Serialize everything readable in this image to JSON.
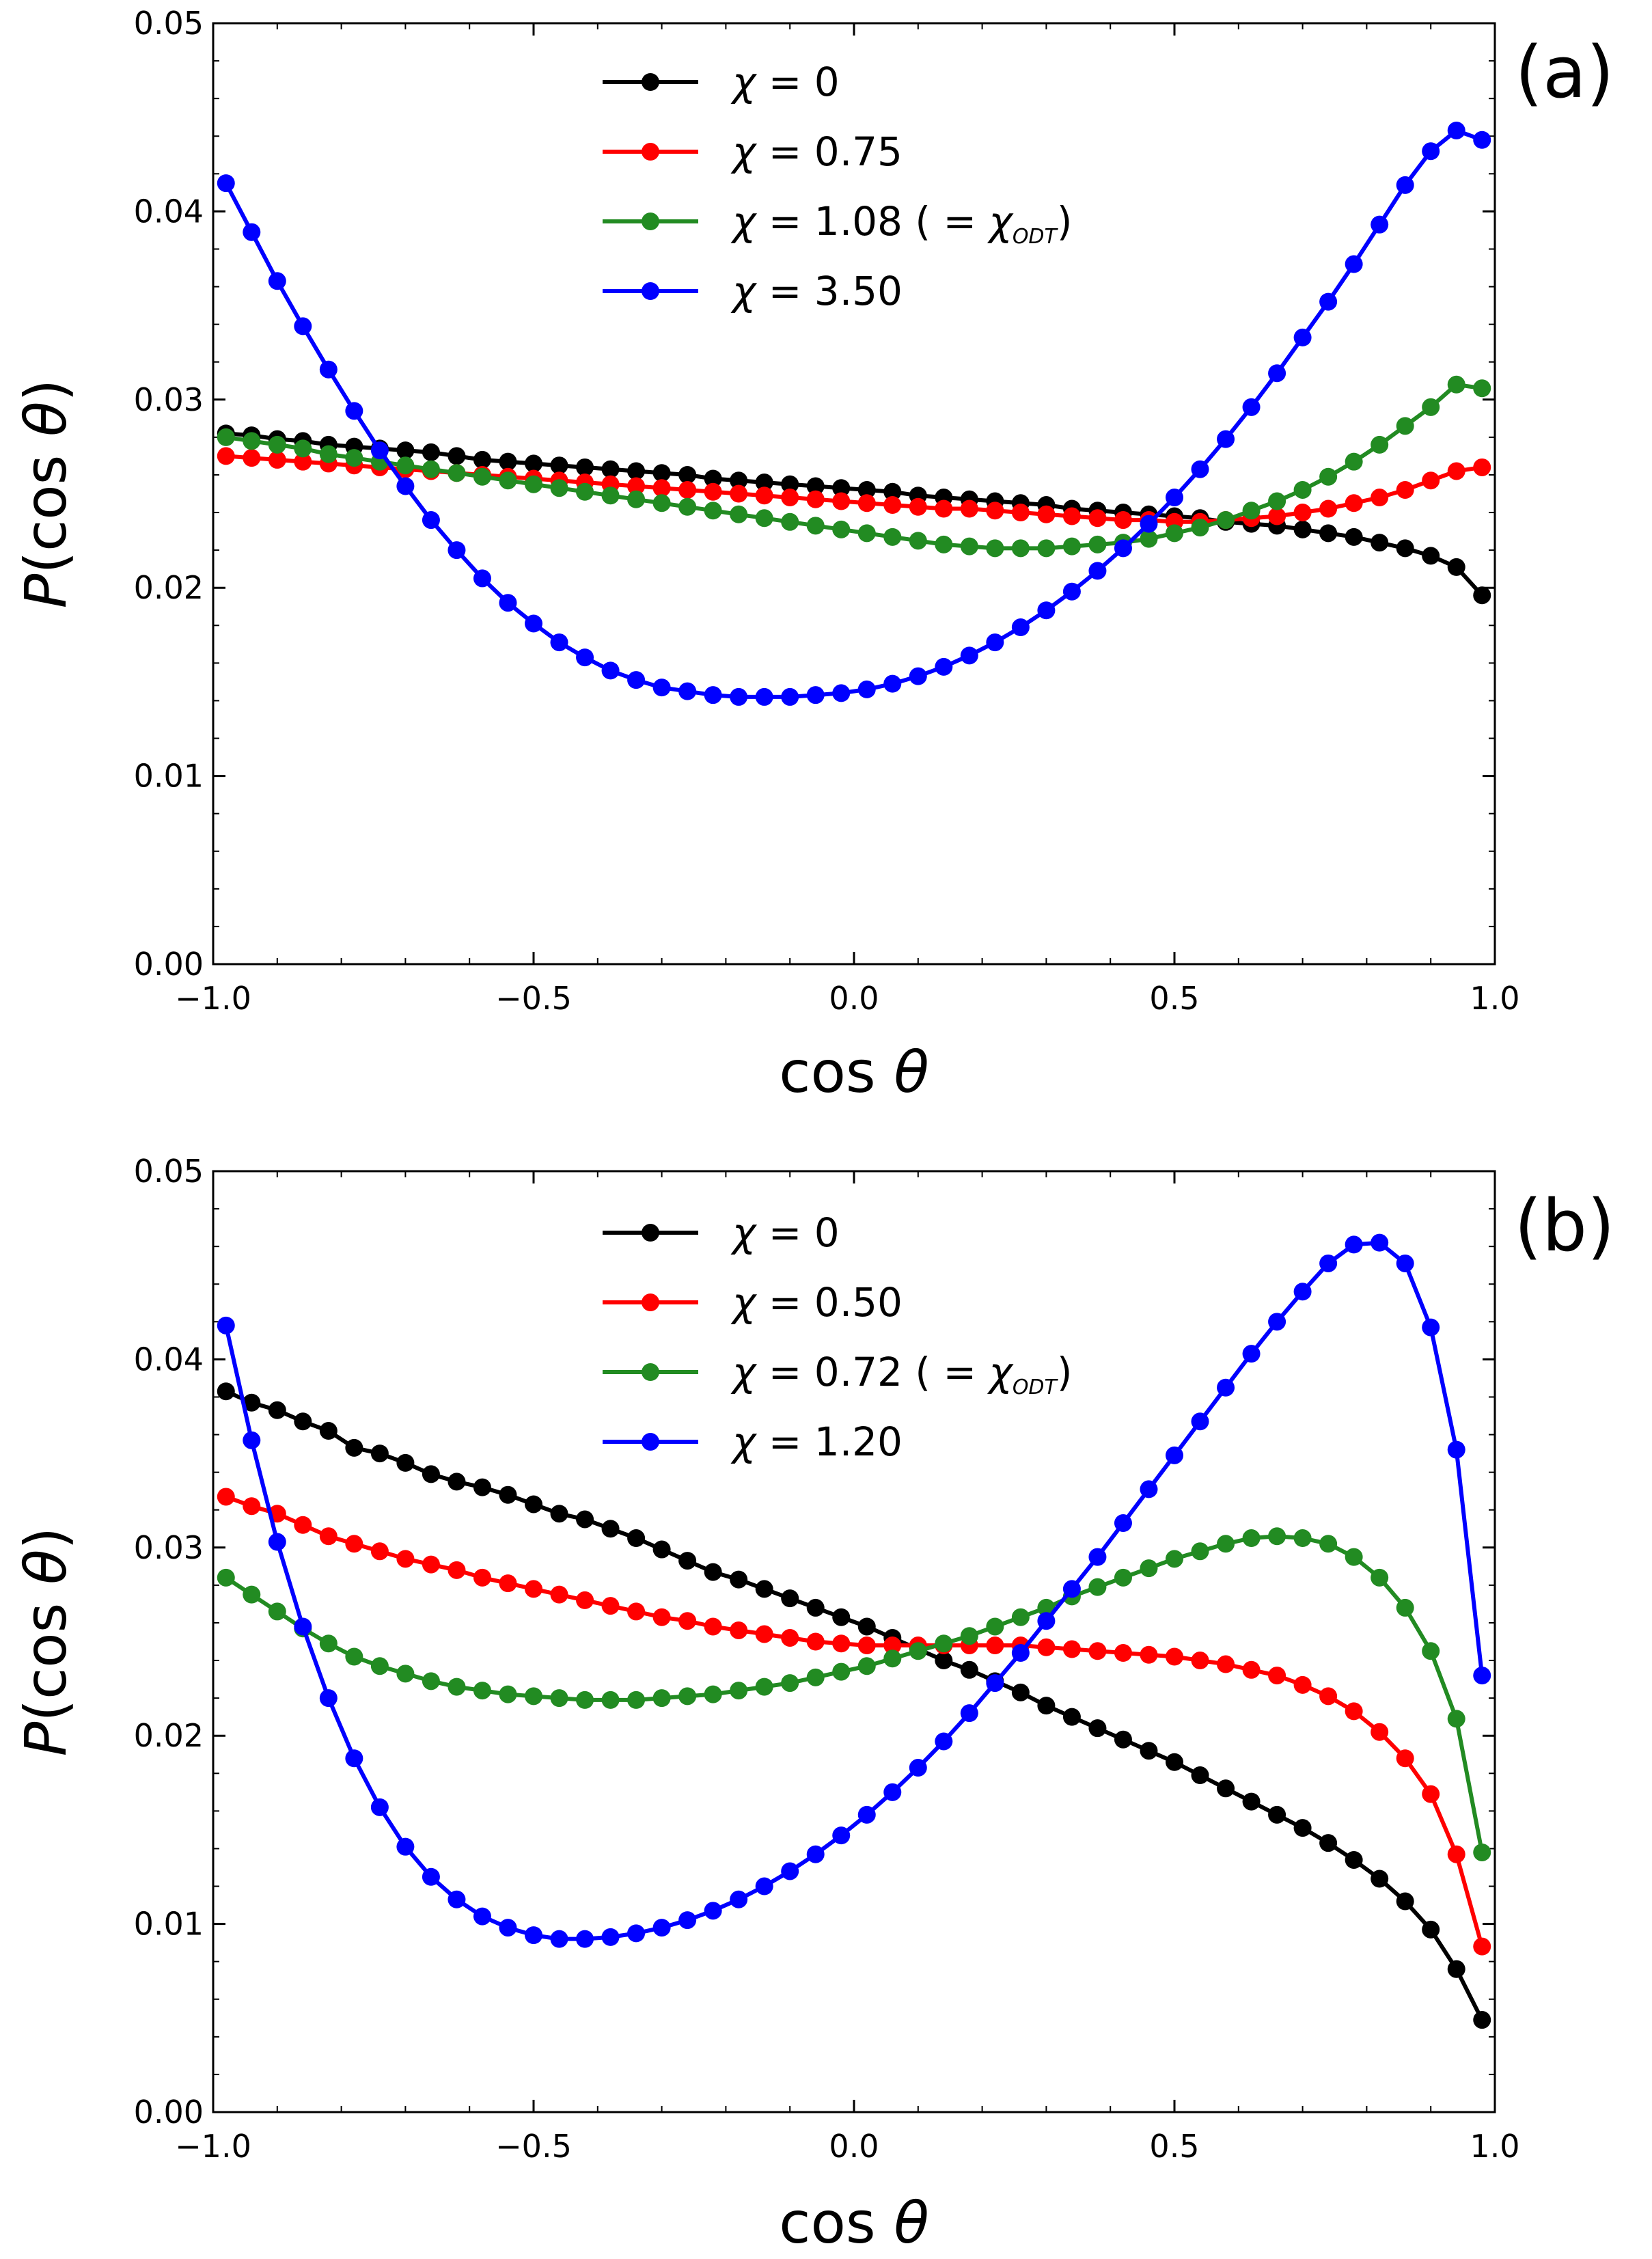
{
  "chart_data": [
    {
      "type": "line",
      "panel_label": "(a)",
      "xlabel": "cos θ",
      "ylabel": "P(cos θ)",
      "xlim": [
        -1.0,
        1.0
      ],
      "ylim": [
        0.0,
        0.05
      ],
      "xticks": [
        -1.0,
        -0.5,
        0.0,
        0.5,
        1.0
      ],
      "xtick_labels": [
        "−1.0",
        "−0.5",
        "0.0",
        "0.5",
        "1.0"
      ],
      "yticks": [
        0.0,
        0.01,
        0.02,
        0.03,
        0.04,
        0.05
      ],
      "ytick_labels": [
        "0.00",
        "0.01",
        "0.02",
        "0.03",
        "0.04",
        "0.05"
      ],
      "legend_position": "top-center",
      "x": [
        -0.98,
        -0.94,
        -0.9,
        -0.86,
        -0.82,
        -0.78,
        -0.74,
        -0.7,
        -0.66,
        -0.62,
        -0.58,
        -0.54,
        -0.5,
        -0.46,
        -0.42,
        -0.38,
        -0.34,
        -0.3,
        -0.26,
        -0.22,
        -0.18,
        -0.14,
        -0.1,
        -0.06,
        -0.02,
        0.02,
        0.06,
        0.1,
        0.14,
        0.18,
        0.22,
        0.26,
        0.3,
        0.34,
        0.38,
        0.42,
        0.46,
        0.5,
        0.54,
        0.58,
        0.62,
        0.66,
        0.7,
        0.74,
        0.78,
        0.82,
        0.86,
        0.9,
        0.94,
        0.98
      ],
      "series": [
        {
          "name": "χ = 0",
          "label": "χ = 0",
          "color": "#000000",
          "values": [
            0.0282,
            0.0281,
            0.0279,
            0.0278,
            0.0276,
            0.0275,
            0.0274,
            0.0273,
            0.0272,
            0.027,
            0.0268,
            0.0267,
            0.0266,
            0.0265,
            0.0264,
            0.0263,
            0.0262,
            0.0261,
            0.026,
            0.0258,
            0.0257,
            0.0256,
            0.0255,
            0.0254,
            0.0253,
            0.0252,
            0.0251,
            0.0249,
            0.0248,
            0.0247,
            0.0246,
            0.0245,
            0.0244,
            0.0242,
            0.0241,
            0.024,
            0.0239,
            0.0238,
            0.0237,
            0.0235,
            0.0234,
            0.0233,
            0.0231,
            0.0229,
            0.0227,
            0.0224,
            0.0221,
            0.0217,
            0.0211,
            0.0196
          ]
        },
        {
          "name": "χ = 0.75",
          "label": "χ = 0.75",
          "color": "#ff0000",
          "values": [
            0.027,
            0.0269,
            0.0268,
            0.0267,
            0.0266,
            0.0265,
            0.0264,
            0.0263,
            0.0262,
            0.0261,
            0.026,
            0.0259,
            0.0258,
            0.0257,
            0.0256,
            0.0255,
            0.0254,
            0.0253,
            0.0252,
            0.0251,
            0.025,
            0.0249,
            0.0248,
            0.0247,
            0.0246,
            0.0245,
            0.0244,
            0.0243,
            0.0242,
            0.0242,
            0.0241,
            0.024,
            0.0239,
            0.0238,
            0.0237,
            0.0236,
            0.0236,
            0.0235,
            0.0235,
            0.0236,
            0.0237,
            0.0238,
            0.024,
            0.0242,
            0.0245,
            0.0248,
            0.0252,
            0.0257,
            0.0262,
            0.0264
          ]
        },
        {
          "name": "χ = 1.08 ( = χODT)",
          "label": "χ = 1.08 ( = χ",
          "sub": "ODT",
          "color": "#228b22",
          "values": [
            0.028,
            0.0278,
            0.0276,
            0.0274,
            0.0271,
            0.0269,
            0.0267,
            0.0265,
            0.0263,
            0.0261,
            0.0259,
            0.0257,
            0.0255,
            0.0253,
            0.0251,
            0.0249,
            0.0247,
            0.0245,
            0.0243,
            0.0241,
            0.0239,
            0.0237,
            0.0235,
            0.0233,
            0.0231,
            0.0229,
            0.0227,
            0.0225,
            0.0223,
            0.0222,
            0.0221,
            0.0221,
            0.0221,
            0.0222,
            0.0223,
            0.0224,
            0.0226,
            0.0229,
            0.0232,
            0.0236,
            0.0241,
            0.0246,
            0.0252,
            0.0259,
            0.0267,
            0.0276,
            0.0286,
            0.0296,
            0.0308,
            0.0306
          ]
        },
        {
          "name": "χ = 3.50",
          "label": "χ = 3.50",
          "color": "#0000ff",
          "values": [
            0.0415,
            0.0389,
            0.0363,
            0.0339,
            0.0316,
            0.0294,
            0.0273,
            0.0254,
            0.0236,
            0.022,
            0.0205,
            0.0192,
            0.0181,
            0.0171,
            0.0163,
            0.0156,
            0.0151,
            0.0147,
            0.0145,
            0.0143,
            0.0142,
            0.0142,
            0.0142,
            0.0143,
            0.0144,
            0.0146,
            0.0149,
            0.0153,
            0.0158,
            0.0164,
            0.0171,
            0.0179,
            0.0188,
            0.0198,
            0.0209,
            0.0221,
            0.0234,
            0.0248,
            0.0263,
            0.0279,
            0.0296,
            0.0314,
            0.0333,
            0.0352,
            0.0372,
            0.0393,
            0.0414,
            0.0432,
            0.0443,
            0.0438
          ]
        }
      ]
    },
    {
      "type": "line",
      "panel_label": "(b)",
      "xlabel": "cos θ",
      "ylabel": "P(cos θ)",
      "xlim": [
        -1.0,
        1.0
      ],
      "ylim": [
        0.0,
        0.05
      ],
      "xticks": [
        -1.0,
        -0.5,
        0.0,
        0.5,
        1.0
      ],
      "xtick_labels": [
        "−1.0",
        "−0.5",
        "0.0",
        "0.5",
        "1.0"
      ],
      "yticks": [
        0.0,
        0.01,
        0.02,
        0.03,
        0.04,
        0.05
      ],
      "ytick_labels": [
        "0.00",
        "0.01",
        "0.02",
        "0.03",
        "0.04",
        "0.05"
      ],
      "legend_position": "top-center",
      "x": [
        -0.98,
        -0.94,
        -0.9,
        -0.86,
        -0.82,
        -0.78,
        -0.74,
        -0.7,
        -0.66,
        -0.62,
        -0.58,
        -0.54,
        -0.5,
        -0.46,
        -0.42,
        -0.38,
        -0.34,
        -0.3,
        -0.26,
        -0.22,
        -0.18,
        -0.14,
        -0.1,
        -0.06,
        -0.02,
        0.02,
        0.06,
        0.1,
        0.14,
        0.18,
        0.22,
        0.26,
        0.3,
        0.34,
        0.38,
        0.42,
        0.46,
        0.5,
        0.54,
        0.58,
        0.62,
        0.66,
        0.7,
        0.74,
        0.78,
        0.82,
        0.86,
        0.9,
        0.94,
        0.98
      ],
      "series": [
        {
          "name": "χ = 0",
          "label": "χ = 0",
          "color": "#000000",
          "values": [
            0.0383,
            0.0377,
            0.0373,
            0.0367,
            0.0362,
            0.0353,
            0.035,
            0.0345,
            0.0339,
            0.0335,
            0.0332,
            0.0328,
            0.0323,
            0.0318,
            0.0315,
            0.031,
            0.0305,
            0.0299,
            0.0293,
            0.0287,
            0.0283,
            0.0278,
            0.0273,
            0.0268,
            0.0263,
            0.0258,
            0.0252,
            0.0246,
            0.024,
            0.0235,
            0.0229,
            0.0223,
            0.0216,
            0.021,
            0.0204,
            0.0198,
            0.0192,
            0.0186,
            0.0179,
            0.0172,
            0.0165,
            0.0158,
            0.0151,
            0.0143,
            0.0134,
            0.0124,
            0.0112,
            0.0097,
            0.0076,
            0.0049
          ]
        },
        {
          "name": "χ = 0.50",
          "label": "χ = 0.50",
          "color": "#ff0000",
          "values": [
            0.0327,
            0.0322,
            0.0318,
            0.0312,
            0.0306,
            0.0302,
            0.0298,
            0.0294,
            0.0291,
            0.0288,
            0.0284,
            0.0281,
            0.0278,
            0.0275,
            0.0272,
            0.0269,
            0.0266,
            0.0263,
            0.0261,
            0.0258,
            0.0256,
            0.0254,
            0.0252,
            0.025,
            0.0249,
            0.0248,
            0.0248,
            0.0248,
            0.0248,
            0.0248,
            0.0248,
            0.0248,
            0.0247,
            0.0246,
            0.0245,
            0.0244,
            0.0243,
            0.0242,
            0.024,
            0.0238,
            0.0235,
            0.0232,
            0.0227,
            0.0221,
            0.0213,
            0.0202,
            0.0188,
            0.0169,
            0.0137,
            0.0088
          ]
        },
        {
          "name": "χ = 0.72 ( = χODT)",
          "label": "χ = 0.72 ( = χ",
          "sub": "ODT",
          "color": "#228b22",
          "values": [
            0.0284,
            0.0275,
            0.0266,
            0.0257,
            0.0249,
            0.0242,
            0.0237,
            0.0233,
            0.0229,
            0.0226,
            0.0224,
            0.0222,
            0.0221,
            0.022,
            0.0219,
            0.0219,
            0.0219,
            0.022,
            0.0221,
            0.0222,
            0.0224,
            0.0226,
            0.0228,
            0.0231,
            0.0234,
            0.0237,
            0.0241,
            0.0245,
            0.0249,
            0.0253,
            0.0258,
            0.0263,
            0.0268,
            0.0274,
            0.0279,
            0.0284,
            0.0289,
            0.0294,
            0.0298,
            0.0302,
            0.0305,
            0.0306,
            0.0305,
            0.0302,
            0.0295,
            0.0284,
            0.0268,
            0.0245,
            0.0209,
            0.0138
          ]
        },
        {
          "name": "χ = 1.20",
          "label": "χ = 1.20",
          "color": "#0000ff",
          "values": [
            0.0418,
            0.0357,
            0.0303,
            0.0258,
            0.022,
            0.0188,
            0.0162,
            0.0141,
            0.0125,
            0.0113,
            0.0104,
            0.0098,
            0.0094,
            0.0092,
            0.0092,
            0.0093,
            0.0095,
            0.0098,
            0.0102,
            0.0107,
            0.0113,
            0.012,
            0.0128,
            0.0137,
            0.0147,
            0.0158,
            0.017,
            0.0183,
            0.0197,
            0.0212,
            0.0228,
            0.0244,
            0.0261,
            0.0278,
            0.0295,
            0.0313,
            0.0331,
            0.0349,
            0.0367,
            0.0385,
            0.0403,
            0.042,
            0.0436,
            0.0451,
            0.0461,
            0.0462,
            0.0451,
            0.0417,
            0.0352,
            0.0232
          ]
        }
      ]
    }
  ]
}
